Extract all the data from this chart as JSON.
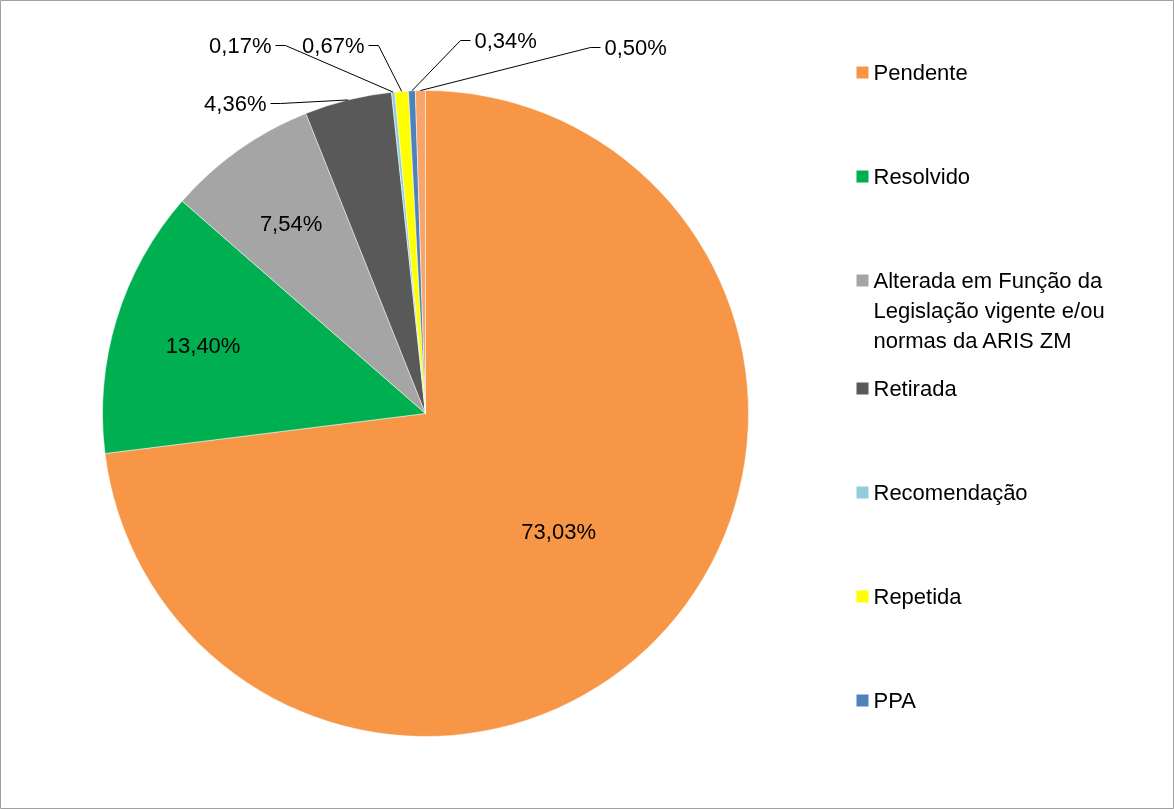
{
  "chart_data": {
    "type": "pie",
    "categories": [
      "Pendente",
      "Resolvido",
      "Alterada em Função da Legislação vigente  e/ou normas da ARIS ZM",
      "Retirada",
      "Recomendação",
      "Repetida",
      "PPA",
      null
    ],
    "values": [
      73.03,
      13.4,
      7.54,
      4.36,
      0.17,
      0.67,
      0.34,
      0.5
    ],
    "colors": [
      "#f79646",
      "#00b050",
      "#a5a5a5",
      "#595959",
      "#92cddc",
      "#ffff00",
      "#4f81bd",
      "#f9a468"
    ],
    "value_labels": [
      "73,03%",
      "13,40%",
      "7,54%",
      "4,36%",
      "0,17%",
      "0,67%",
      "0,34%",
      "0,50%"
    ],
    "legend": "right"
  }
}
